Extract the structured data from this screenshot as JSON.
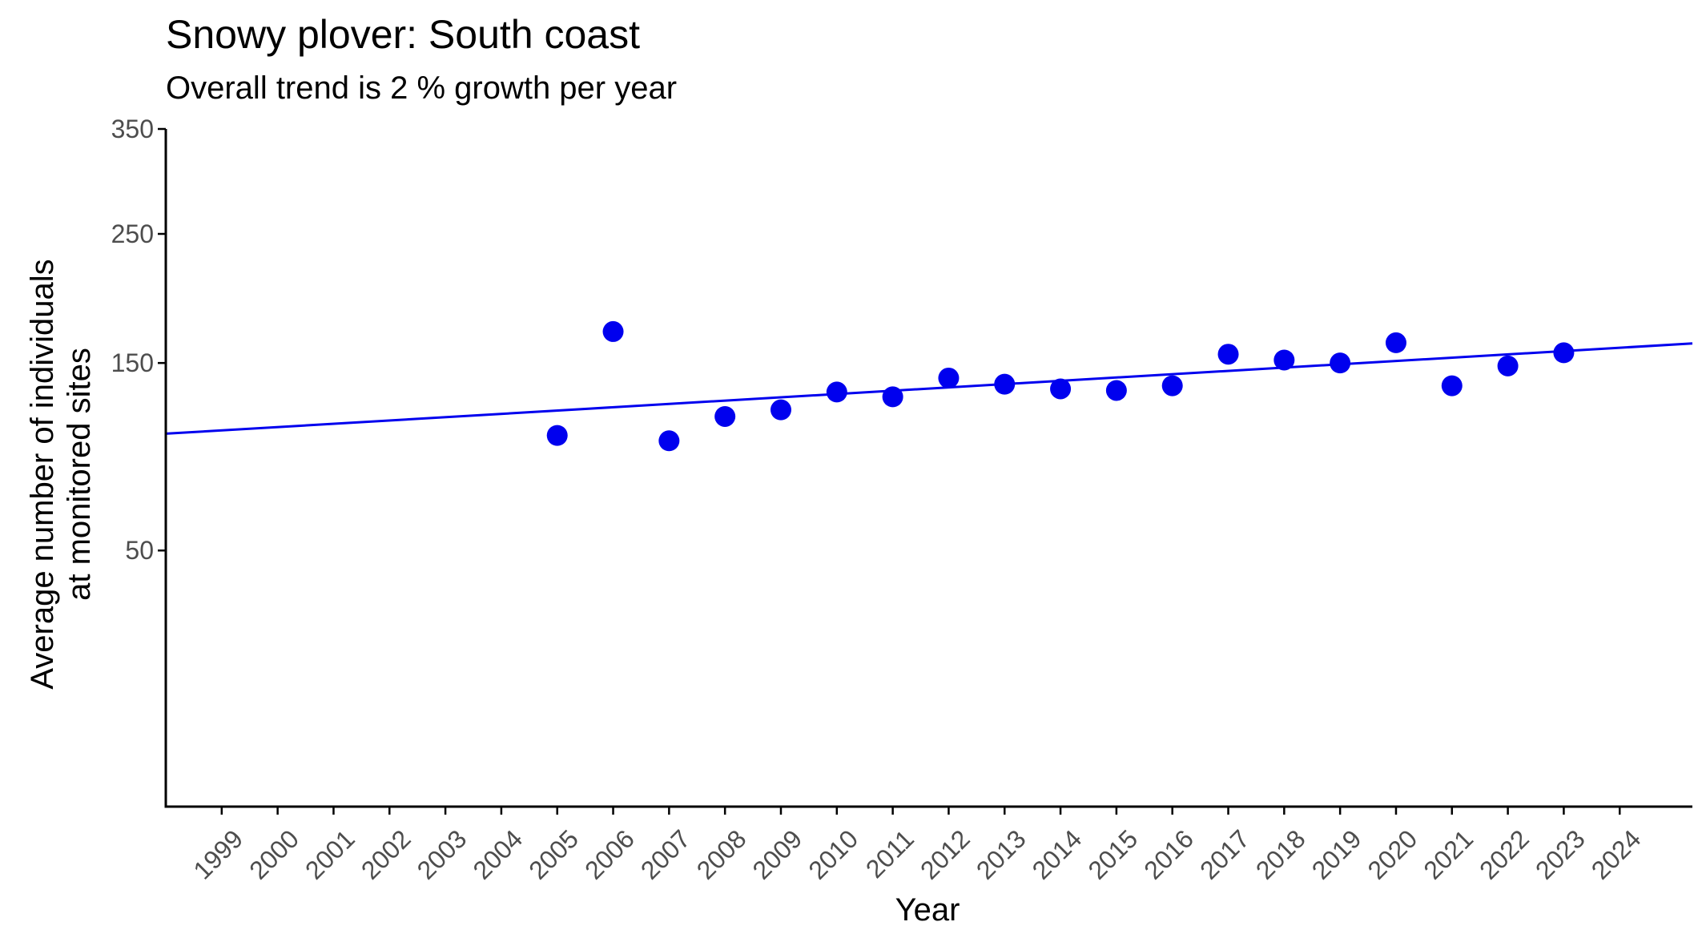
{
  "chart_data": {
    "type": "scatter",
    "title": "Snowy plover: South coast",
    "subtitle": "Overall trend is 2 % growth per year",
    "xlabel": "Year",
    "ylabel_line1": "Average number of individuals",
    "ylabel_line2": "at monitored sites",
    "y_scale": "sqrt",
    "ylim": [
      0,
      350
    ],
    "y_ticks": [
      50,
      150,
      250,
      350
    ],
    "x_ticks": [
      1999,
      2000,
      2001,
      2002,
      2003,
      2004,
      2005,
      2006,
      2007,
      2008,
      2009,
      2010,
      2011,
      2012,
      2013,
      2014,
      2015,
      2016,
      2017,
      2018,
      2019,
      2020,
      2021,
      2022,
      2023,
      2024
    ],
    "xlim": [
      1998,
      2025.3
    ],
    "grid": false,
    "points": [
      {
        "x": 2005,
        "y": 105
      },
      {
        "x": 2006,
        "y": 172
      },
      {
        "x": 2007,
        "y": 102
      },
      {
        "x": 2008,
        "y": 116
      },
      {
        "x": 2009,
        "y": 120
      },
      {
        "x": 2010,
        "y": 131
      },
      {
        "x": 2011,
        "y": 128
      },
      {
        "x": 2012,
        "y": 140
      },
      {
        "x": 2013,
        "y": 136
      },
      {
        "x": 2014,
        "y": 133
      },
      {
        "x": 2015,
        "y": 132
      },
      {
        "x": 2016,
        "y": 135
      },
      {
        "x": 2017,
        "y": 156
      },
      {
        "x": 2018,
        "y": 152
      },
      {
        "x": 2019,
        "y": 150
      },
      {
        "x": 2020,
        "y": 164
      },
      {
        "x": 2021,
        "y": 135
      },
      {
        "x": 2022,
        "y": 148
      },
      {
        "x": 2023,
        "y": 157
      }
    ],
    "trend_line": [
      {
        "x": 1998,
        "y": 106
      },
      {
        "x": 2025.3,
        "y": 163.5
      }
    ],
    "colors": {
      "points": "#0000ee",
      "trend": "#0000ee",
      "axis": "#000000",
      "tick_text": "#4d4d4d"
    }
  }
}
